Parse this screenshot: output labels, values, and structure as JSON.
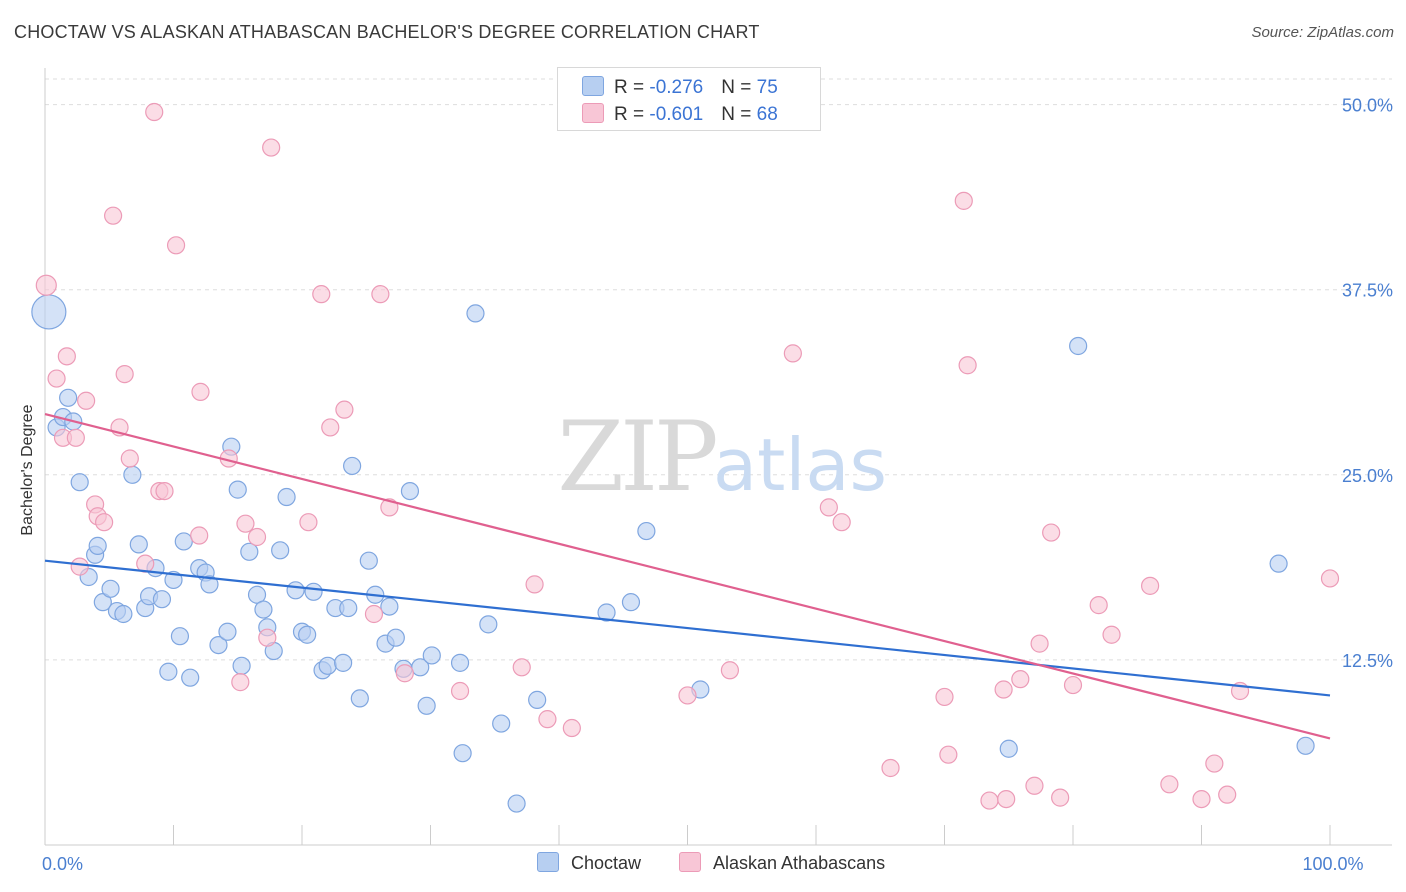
{
  "title": "CHOCTAW VS ALASKAN ATHABASCAN BACHELOR'S DEGREE CORRELATION CHART",
  "source": "Source: ZipAtlas.com",
  "watermark": {
    "zip": "ZIP",
    "atlas": "atlas"
  },
  "legend": {
    "choctaw": {
      "r_label": "R = ",
      "r_value": "-0.276",
      "n_label": "N = ",
      "n_value": "75"
    },
    "athabascan": {
      "r_label": "R = ",
      "r_value": "-0.601",
      "n_label": "N = ",
      "n_value": "68"
    }
  },
  "bottom_legend": {
    "choctaw": "Choctaw",
    "athabascan": "Alaskan Athabascans"
  },
  "colors": {
    "choctaw_fill": "#b7cff1",
    "choctaw_stroke": "#7fa6e0",
    "choctaw_line": "#2f6fd1",
    "athabascan_fill": "#f8c6d6",
    "athabascan_stroke": "#ec9bb7",
    "athabascan_line": "#e0608f",
    "tick_text": "#4a7fd0",
    "grid": "#dddddd"
  },
  "chart_data": {
    "type": "scatter",
    "title": "CHOCTAW VS ALASKAN ATHABASCAN BACHELOR'S DEGREE CORRELATION CHART",
    "xlabel": "",
    "ylabel": "Bachelor's Degree",
    "xlim": [
      0,
      100
    ],
    "ylim": [
      0,
      52
    ],
    "x_tick_labels": [
      {
        "value": 0,
        "label": "0.0%"
      },
      {
        "value": 100,
        "label": "100.0%"
      }
    ],
    "y_ticks": [
      {
        "value": 12.5,
        "label": "12.5%"
      },
      {
        "value": 25,
        "label": "25.0%"
      },
      {
        "value": 37.5,
        "label": "37.5%"
      },
      {
        "value": 50,
        "label": "50.0%"
      }
    ],
    "x_minor_ticks": [
      0,
      10,
      20,
      30,
      40,
      50,
      60,
      70,
      80,
      90,
      100
    ],
    "series": [
      {
        "name": "Choctaw",
        "trend": {
          "x0": 0,
          "y0": 19.2,
          "x1": 100,
          "y1": 10.1
        },
        "points": [
          [
            0.3,
            36.0,
            26
          ],
          [
            0.9,
            28.2,
            10
          ],
          [
            1.4,
            28.9,
            10
          ],
          [
            1.8,
            30.2,
            10
          ],
          [
            2.2,
            28.6,
            10
          ],
          [
            2.7,
            24.5,
            10
          ],
          [
            3.4,
            18.1,
            10
          ],
          [
            3.9,
            19.6,
            10
          ],
          [
            4.1,
            20.2,
            10
          ],
          [
            4.5,
            16.4,
            10
          ],
          [
            5.1,
            17.3,
            10
          ],
          [
            5.6,
            15.8,
            10
          ],
          [
            6.1,
            15.6,
            10
          ],
          [
            6.8,
            25.0,
            10
          ],
          [
            7.3,
            20.3,
            10
          ],
          [
            7.8,
            16.0,
            10
          ],
          [
            8.1,
            16.8,
            10
          ],
          [
            8.6,
            18.7,
            10
          ],
          [
            9.1,
            16.6,
            10
          ],
          [
            9.6,
            11.7,
            10
          ],
          [
            10.0,
            17.9,
            10
          ],
          [
            10.5,
            14.1,
            10
          ],
          [
            10.8,
            20.5,
            10
          ],
          [
            11.3,
            11.3,
            10
          ],
          [
            12.0,
            18.7,
            10
          ],
          [
            12.5,
            18.4,
            10
          ],
          [
            12.8,
            17.6,
            10
          ],
          [
            13.5,
            13.5,
            10
          ],
          [
            14.2,
            14.4,
            10
          ],
          [
            14.5,
            26.9,
            10
          ],
          [
            15.0,
            24.0,
            10
          ],
          [
            15.3,
            12.1,
            10
          ],
          [
            15.9,
            19.8,
            10
          ],
          [
            16.5,
            16.9,
            10
          ],
          [
            17.0,
            15.9,
            10
          ],
          [
            17.3,
            14.7,
            10
          ],
          [
            17.8,
            13.1,
            10
          ],
          [
            18.3,
            19.9,
            10
          ],
          [
            18.8,
            23.5,
            10
          ],
          [
            19.5,
            17.2,
            10
          ],
          [
            20.0,
            14.4,
            10
          ],
          [
            20.4,
            14.2,
            10
          ],
          [
            20.9,
            17.1,
            10
          ],
          [
            21.6,
            11.8,
            10
          ],
          [
            22.0,
            12.1,
            10
          ],
          [
            22.6,
            16.0,
            10
          ],
          [
            23.2,
            12.3,
            10
          ],
          [
            23.6,
            16.0,
            10
          ],
          [
            23.9,
            25.6,
            10
          ],
          [
            24.5,
            9.9,
            10
          ],
          [
            25.2,
            19.2,
            10
          ],
          [
            25.7,
            16.9,
            10
          ],
          [
            26.5,
            13.6,
            10
          ],
          [
            26.8,
            16.1,
            10
          ],
          [
            27.3,
            14.0,
            10
          ],
          [
            27.9,
            11.9,
            10
          ],
          [
            28.4,
            23.9,
            10
          ],
          [
            29.2,
            12.0,
            10
          ],
          [
            29.7,
            9.4,
            10
          ],
          [
            30.1,
            12.8,
            10
          ],
          [
            32.3,
            12.3,
            10
          ],
          [
            32.5,
            6.2,
            10
          ],
          [
            33.5,
            35.9,
            10
          ],
          [
            34.5,
            14.9,
            10
          ],
          [
            35.5,
            8.2,
            10
          ],
          [
            36.7,
            2.8,
            10
          ],
          [
            38.3,
            9.8,
            10
          ],
          [
            43.7,
            15.7,
            10
          ],
          [
            45.6,
            16.4,
            10
          ],
          [
            46.8,
            21.2,
            10
          ],
          [
            51.0,
            10.5,
            10
          ],
          [
            75.0,
            6.5,
            10
          ],
          [
            80.4,
            33.7,
            10
          ],
          [
            96.0,
            19.0,
            10
          ],
          [
            98.1,
            6.7,
            10
          ]
        ]
      },
      {
        "name": "Alaskan Athabascans",
        "trend": {
          "x0": 0,
          "y0": 29.1,
          "x1": 100,
          "y1": 7.2
        },
        "points": [
          [
            0.1,
            37.8,
            12
          ],
          [
            0.9,
            31.5,
            10
          ],
          [
            1.4,
            27.5,
            10
          ],
          [
            1.7,
            33.0,
            10
          ],
          [
            2.4,
            27.5,
            10
          ],
          [
            2.7,
            18.8,
            10
          ],
          [
            3.2,
            30.0,
            10
          ],
          [
            3.9,
            23.0,
            10
          ],
          [
            4.1,
            22.2,
            10
          ],
          [
            4.6,
            21.8,
            10
          ],
          [
            5.3,
            42.5,
            10
          ],
          [
            5.8,
            28.2,
            10
          ],
          [
            6.2,
            31.8,
            10
          ],
          [
            6.6,
            26.1,
            10
          ],
          [
            7.8,
            19.0,
            10
          ],
          [
            8.5,
            49.5,
            10
          ],
          [
            8.9,
            23.9,
            10
          ],
          [
            9.3,
            23.9,
            10
          ],
          [
            10.2,
            40.5,
            10
          ],
          [
            12.0,
            20.9,
            10
          ],
          [
            12.1,
            30.6,
            10
          ],
          [
            14.3,
            26.1,
            10
          ],
          [
            15.2,
            11.0,
            10
          ],
          [
            15.6,
            21.7,
            10
          ],
          [
            16.5,
            20.8,
            10
          ],
          [
            17.3,
            14.0,
            10
          ],
          [
            17.6,
            47.1,
            10
          ],
          [
            20.5,
            21.8,
            10
          ],
          [
            21.5,
            37.2,
            10
          ],
          [
            22.2,
            28.2,
            10
          ],
          [
            23.3,
            29.4,
            10
          ],
          [
            25.6,
            15.6,
            10
          ],
          [
            26.1,
            37.2,
            10
          ],
          [
            26.8,
            22.8,
            10
          ],
          [
            28.0,
            11.6,
            10
          ],
          [
            32.3,
            10.4,
            10
          ],
          [
            37.1,
            12.0,
            10
          ],
          [
            38.1,
            17.6,
            10
          ],
          [
            39.1,
            8.5,
            10
          ],
          [
            41.0,
            7.9,
            10
          ],
          [
            50.0,
            10.1,
            10
          ],
          [
            53.3,
            11.8,
            10
          ],
          [
            58.2,
            33.2,
            10
          ],
          [
            61.0,
            22.8,
            10
          ],
          [
            62.0,
            21.8,
            10
          ],
          [
            65.8,
            5.2,
            10
          ],
          [
            70.0,
            10.0,
            10
          ],
          [
            70.3,
            6.1,
            10
          ],
          [
            71.5,
            43.5,
            10
          ],
          [
            71.8,
            32.4,
            10
          ],
          [
            73.5,
            3.0,
            10
          ],
          [
            74.8,
            3.1,
            10
          ],
          [
            74.6,
            10.5,
            10
          ],
          [
            75.9,
            11.2,
            10
          ],
          [
            77.0,
            4.0,
            10
          ],
          [
            77.4,
            13.6,
            10
          ],
          [
            78.3,
            21.1,
            10
          ],
          [
            79.0,
            3.2,
            10
          ],
          [
            80.0,
            10.8,
            10
          ],
          [
            82.0,
            16.2,
            10
          ],
          [
            83.0,
            14.2,
            10
          ],
          [
            86.0,
            17.5,
            10
          ],
          [
            87.5,
            4.1,
            10
          ],
          [
            90.0,
            3.1,
            10
          ],
          [
            91.0,
            5.5,
            10
          ],
          [
            92.0,
            3.4,
            10
          ],
          [
            93.0,
            10.4,
            10
          ],
          [
            100.0,
            18.0,
            10
          ]
        ]
      }
    ]
  }
}
